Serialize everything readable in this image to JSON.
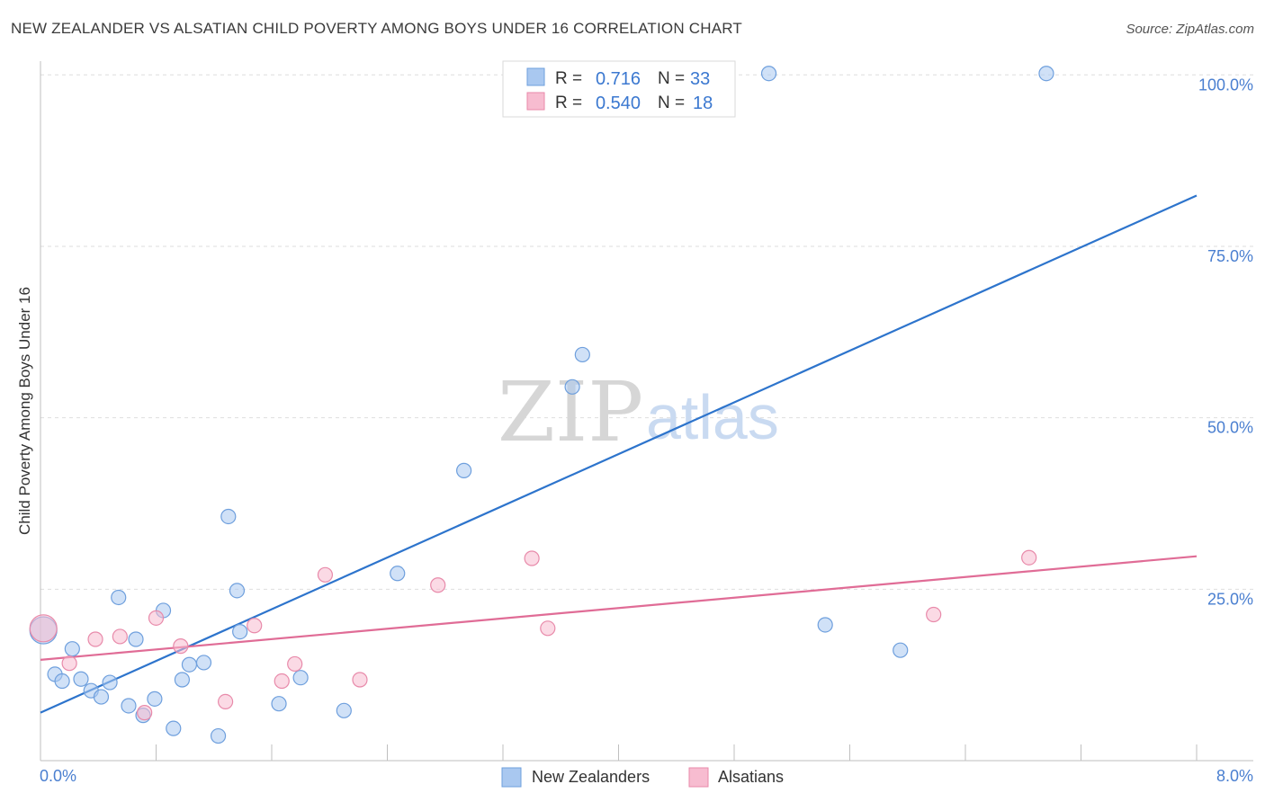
{
  "title": "NEW ZEALANDER VS ALSATIAN CHILD POVERTY AMONG BOYS UNDER 16 CORRELATION CHART",
  "source": "Source: ZipAtlas.com",
  "watermark": {
    "zip": "ZIP",
    "atlas": "atlas"
  },
  "legend": {
    "r_label": "R =",
    "n_label": "N =",
    "rows": [
      {
        "r": "0.716",
        "n": "33",
        "color": "#a9c8f0"
      },
      {
        "r": "0.540",
        "n": "18",
        "color": "#f7bcd0"
      }
    ]
  },
  "bottom_legend": [
    {
      "label": "New Zealanders",
      "color": "#a9c8f0"
    },
    {
      "label": "Alsatians",
      "color": "#f7bcd0"
    }
  ],
  "chart_data": {
    "type": "scatter",
    "title": "NEW ZEALANDER VS ALSATIAN CHILD POVERTY AMONG BOYS UNDER 16 CORRELATION CHART",
    "xlabel": "",
    "ylabel": "Child Poverty Among Boys Under 16",
    "xlim": [
      0,
      8
    ],
    "ylim": [
      0,
      102
    ],
    "x_tick_labels": [
      "0.0%",
      "8.0%"
    ],
    "y_ticks": [
      25,
      50,
      75,
      100
    ],
    "y_tick_labels": [
      "25.0%",
      "50.0%",
      "75.0%",
      "100.0%"
    ],
    "series": [
      {
        "name": "New Zealanders",
        "color": "#a9c8f0",
        "stroke": "#6e9fdd",
        "line_color": "#2d74cc",
        "trend": [
          [
            0,
            7.0
          ],
          [
            8,
            82.4
          ]
        ],
        "points": [
          [
            0.02,
            19.0
          ],
          [
            0.1,
            12.6
          ],
          [
            0.15,
            11.6
          ],
          [
            0.22,
            16.3
          ],
          [
            0.28,
            11.9
          ],
          [
            0.35,
            10.2
          ],
          [
            0.42,
            9.3
          ],
          [
            0.48,
            11.4
          ],
          [
            0.54,
            23.8
          ],
          [
            0.61,
            8.0
          ],
          [
            0.66,
            17.7
          ],
          [
            0.71,
            6.6
          ],
          [
            0.79,
            9.0
          ],
          [
            0.85,
            21.9
          ],
          [
            0.92,
            4.7
          ],
          [
            0.98,
            11.8
          ],
          [
            1.03,
            14.0
          ],
          [
            1.13,
            14.3
          ],
          [
            1.23,
            3.6
          ],
          [
            1.3,
            35.6
          ],
          [
            1.36,
            24.8
          ],
          [
            1.38,
            18.8
          ],
          [
            1.65,
            8.3
          ],
          [
            1.8,
            12.1
          ],
          [
            2.1,
            7.3
          ],
          [
            2.47,
            27.3
          ],
          [
            2.93,
            42.3
          ],
          [
            3.68,
            54.5
          ],
          [
            3.75,
            59.2
          ],
          [
            5.04,
            100.2
          ],
          [
            5.43,
            19.8
          ],
          [
            5.95,
            16.1
          ],
          [
            6.96,
            100.2
          ]
        ]
      },
      {
        "name": "Alsatians",
        "color": "#f7bcd0",
        "stroke": "#e88aaa",
        "line_color": "#e06c96",
        "trend": [
          [
            0,
            14.7
          ],
          [
            8,
            29.8
          ]
        ],
        "points": [
          [
            0.02,
            19.3
          ],
          [
            0.2,
            14.2
          ],
          [
            0.38,
            17.7
          ],
          [
            0.55,
            18.1
          ],
          [
            0.72,
            7.0
          ],
          [
            0.8,
            20.8
          ],
          [
            0.97,
            16.7
          ],
          [
            1.28,
            8.6
          ],
          [
            1.48,
            19.7
          ],
          [
            1.67,
            11.6
          ],
          [
            1.76,
            14.1
          ],
          [
            1.97,
            27.1
          ],
          [
            2.21,
            11.8
          ],
          [
            2.75,
            25.6
          ],
          [
            3.4,
            29.5
          ],
          [
            3.51,
            19.3
          ],
          [
            6.18,
            21.3
          ],
          [
            6.84,
            29.6
          ]
        ]
      }
    ]
  }
}
